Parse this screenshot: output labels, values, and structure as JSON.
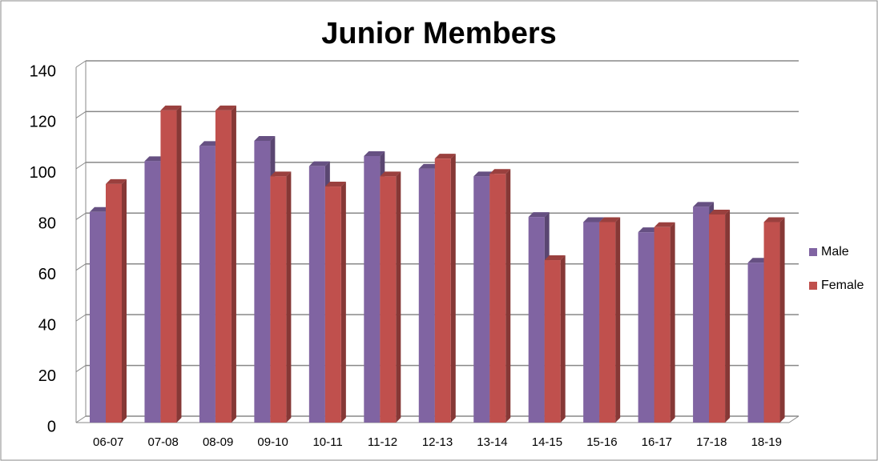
{
  "chart_data": {
    "type": "bar",
    "title": "Junior Members",
    "categories": [
      "06-07",
      "07-08",
      "08-09",
      "09-10",
      "10-11",
      "11-12",
      "12-13",
      "13-14",
      "14-15",
      "15-16",
      "16-17",
      "17-18",
      "18-19"
    ],
    "series": [
      {
        "name": "Male",
        "color": "#8064a2",
        "values": [
          83,
          103,
          109,
          111,
          101,
          105,
          100,
          97,
          81,
          79,
          75,
          85,
          63
        ]
      },
      {
        "name": "Female",
        "color": "#c0504d",
        "values": [
          94,
          123,
          123,
          97,
          93,
          97,
          104,
          98,
          64,
          79,
          77,
          82,
          79
        ]
      }
    ],
    "ylim": [
      0,
      140
    ],
    "yticks": [
      0,
      20,
      40,
      60,
      80,
      100,
      120,
      140
    ],
    "grid": true,
    "legend": "right"
  }
}
